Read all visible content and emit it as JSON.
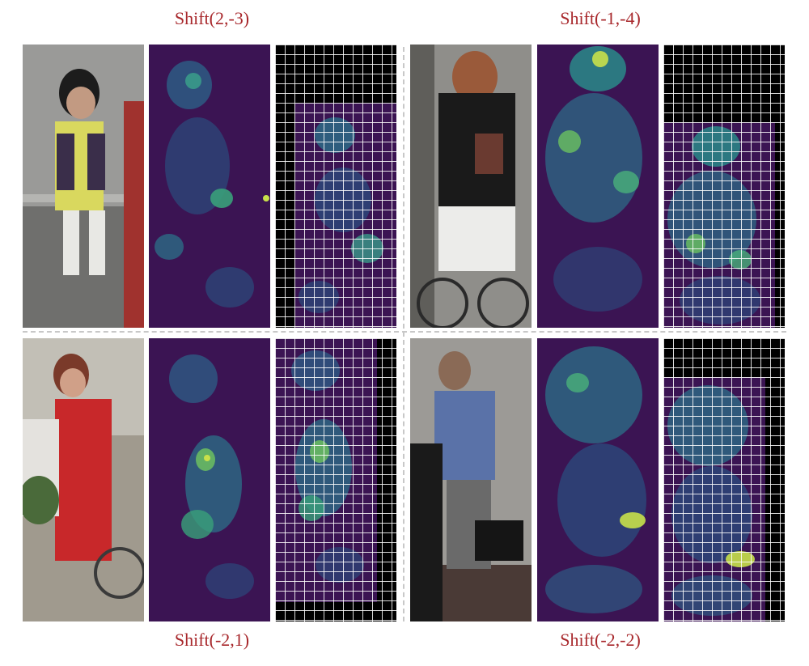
{
  "captions": {
    "top_left": "Shift(2,-3)",
    "top_right": "Shift(-1,-4)",
    "bottom_left": "Shift(-2,1)",
    "bottom_right": "Shift(-2,-2)"
  },
  "colors": {
    "caption": "#a8282c",
    "heat_low": "#3b1453",
    "heat_mid": "#2a8a8a",
    "heat_high": "#c8e04a",
    "divider": "#c8c8c8"
  }
}
